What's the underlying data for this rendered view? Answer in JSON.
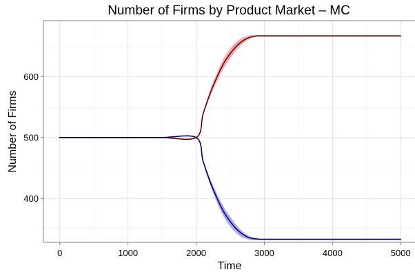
{
  "chart_data": {
    "type": "line",
    "title": "Number of Firms by Product Market – MC",
    "xlabel": "Time",
    "ylabel": "Number of Firms",
    "xlim": [
      -240,
      5220
    ],
    "ylim": [
      328,
      692
    ],
    "x_ticks": [
      0,
      1000,
      2000,
      3000,
      4000,
      5000
    ],
    "y_ticks": [
      400,
      500,
      600
    ],
    "grid": true,
    "legend": "none",
    "series": [
      {
        "color": "#ff0000",
        "band_color": "#f4a6ad",
        "x": [
          0,
          500,
          1000,
          1500,
          2000,
          2100,
          2200,
          2300,
          2400,
          2500,
          2600,
          2700,
          2800,
          2900,
          3000,
          3500,
          4000,
          4500,
          5000
        ],
        "y": [
          500,
          500,
          500,
          500,
          500,
          538,
          571,
          598,
          621,
          638,
          651,
          660,
          665,
          667,
          667,
          667,
          667,
          667,
          667
        ],
        "lower": [
          500,
          500,
          500,
          500,
          500,
          536,
          566,
          591,
          613,
          630,
          645,
          656,
          663,
          666,
          667,
          667,
          667,
          667,
          667
        ],
        "upper": [
          500,
          500,
          500,
          500,
          500,
          540,
          576,
          605,
          629,
          646,
          658,
          665,
          668,
          668,
          668,
          668,
          668,
          668,
          668
        ]
      },
      {
        "color": "#0000ff",
        "band_color": "#a9a9f0",
        "x": [
          0,
          500,
          1000,
          1500,
          2000,
          2100,
          2200,
          2300,
          2400,
          2500,
          2600,
          2700,
          2800,
          2900,
          3000,
          3500,
          4000,
          4500,
          5000
        ],
        "y": [
          500,
          500,
          500,
          500,
          500,
          462,
          429,
          402,
          379,
          362,
          349,
          340,
          335,
          333.5,
          333,
          333,
          333,
          333,
          333
        ],
        "lower": [
          500,
          500,
          500,
          500,
          500,
          460,
          424,
          395,
          371,
          354,
          342,
          335,
          332,
          332,
          332,
          332,
          332,
          332,
          332
        ],
        "upper": [
          500,
          500,
          500,
          500,
          500,
          464,
          434,
          409,
          387,
          370,
          355,
          344,
          337,
          334,
          334,
          334,
          334,
          334,
          334
        ]
      },
      {
        "color": "#000000",
        "x": [
          0,
          500,
          1000,
          1500,
          2000,
          2100,
          2200,
          2300,
          2400,
          2500,
          2600,
          2700,
          2800,
          2900,
          3000,
          3500,
          4000,
          4500,
          5000
        ],
        "y": [
          500,
          500,
          500,
          500,
          500,
          538,
          571,
          598,
          621,
          638,
          651,
          660,
          665,
          667,
          667,
          667,
          667,
          667,
          667
        ]
      },
      {
        "color": "#000000",
        "x": [
          0,
          500,
          1000,
          1500,
          2000,
          2100,
          2200,
          2300,
          2400,
          2500,
          2600,
          2700,
          2800,
          2900,
          3000,
          3500,
          4000,
          4500,
          5000
        ],
        "y": [
          500,
          500,
          500,
          500,
          500,
          462,
          429,
          402,
          379,
          362,
          349,
          340,
          335,
          333.5,
          333,
          333,
          333,
          333,
          333
        ]
      }
    ]
  }
}
